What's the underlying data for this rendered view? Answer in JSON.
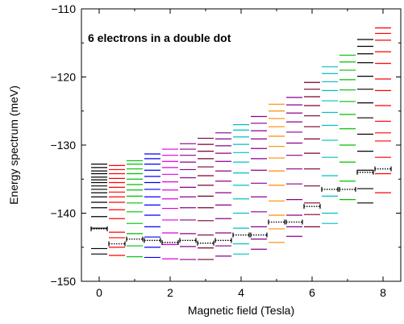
{
  "chart_data": {
    "type": "scatter",
    "title": "",
    "annotation": "6 electrons in a double dot",
    "xlabel": "Magnetic field (Tesla)",
    "ylabel": "Energy spectrum (meV)",
    "xlim": [
      -0.5,
      8.5
    ],
    "ylim": [
      -150,
      -110
    ],
    "xticks": [
      0,
      2,
      4,
      6,
      8
    ],
    "yticks": [
      -150,
      -140,
      -130,
      -120,
      -110
    ],
    "grid": false,
    "marker": "short horizontal line per energy level",
    "colors": [
      "#000000",
      "#ff0000",
      "#00c000",
      "#0000ff",
      "#e000e0",
      "#00c0c0",
      "#ff8c00",
      "#8b008b",
      "#7a0030"
    ],
    "ground_state": {
      "style": "dotted black segment with end caps",
      "x": [
        0,
        0.5,
        1,
        1.5,
        2,
        2.5,
        3,
        3.5,
        4,
        4.5,
        5,
        5.5,
        6,
        6.5,
        7,
        7.5,
        8
      ],
      "y": [
        -142.3,
        -144.5,
        -143.8,
        -144.0,
        -144.3,
        -144.0,
        -144.4,
        -144.0,
        -143.2,
        -143.2,
        -141.3,
        -141.3,
        -139.0,
        -136.5,
        -136.5,
        -134.0,
        -133.5
      ]
    },
    "series": [
      {
        "x": 0,
        "color": "#000000",
        "levels": [
          -132.8,
          -133.3,
          -133.8,
          -134.2,
          -134.7,
          -135.1,
          -135.5,
          -136.0,
          -136.5,
          -137.0,
          -137.6,
          -138.4,
          -139.2,
          -140.5,
          -142.2,
          -145.2,
          -146.0
        ]
      },
      {
        "x": 0.5,
        "color": "#ff0000",
        "levels": [
          -133.0,
          -133.6,
          -134.2,
          -134.9,
          -135.5,
          -136.2,
          -136.9,
          -137.6,
          -138.4,
          -139.5,
          -140.8,
          -142.8,
          -143.6,
          -145.0,
          -146.2
        ]
      },
      {
        "x": 1,
        "color": "#00c000",
        "levels": [
          -132.3,
          -132.8,
          -133.5,
          -134.2,
          -135.0,
          -135.8,
          -136.6,
          -137.5,
          -138.5,
          -139.8,
          -141.5,
          -143.0,
          -144.8,
          -146.4
        ]
      },
      {
        "x": 1.5,
        "color": "#0000ff",
        "levels": [
          -131.3,
          -132.0,
          -132.8,
          -133.7,
          -134.6,
          -135.5,
          -136.5,
          -137.6,
          -138.8,
          -140.3,
          -142.0,
          -143.5,
          -145.0,
          -146.5
        ]
      },
      {
        "x": 2,
        "color": "#e000e0",
        "levels": [
          -130.6,
          -131.5,
          -132.4,
          -133.3,
          -134.3,
          -135.4,
          -136.6,
          -137.9,
          -139.3,
          -141.0,
          -142.9,
          -144.6,
          -146.7
        ]
      },
      {
        "x": 2.5,
        "color": "#8b008b",
        "levels": [
          -129.8,
          -130.6,
          -131.5,
          -132.5,
          -133.6,
          -134.8,
          -136.2,
          -137.6,
          -139.2,
          -141.0,
          -143.0,
          -144.9,
          -146.8
        ]
      },
      {
        "x": 3,
        "color": "#7a0030",
        "levels": [
          -129.0,
          -129.9,
          -130.9,
          -132.0,
          -133.2,
          -134.5,
          -135.9,
          -137.5,
          -139.2,
          -141.1,
          -143.2,
          -145.1,
          -146.8
        ]
      },
      {
        "x": 3.5,
        "color": "#8b008b",
        "levels": [
          -128.2,
          -129.1,
          -130.1,
          -131.2,
          -132.4,
          -133.8,
          -135.3,
          -137.0,
          -138.8,
          -140.8,
          -142.9,
          -144.8,
          -146.3
        ]
      },
      {
        "x": 4,
        "color": "#00c0c0",
        "levels": [
          -127.0,
          -127.8,
          -128.8,
          -129.9,
          -131.1,
          -132.5,
          -134.1,
          -135.9,
          -137.9,
          -140.0,
          -142.2,
          -144.5,
          -146.0
        ]
      },
      {
        "x": 4.5,
        "color": "#8b008b",
        "levels": [
          -125.8,
          -126.8,
          -127.9,
          -129.1,
          -130.5,
          -132.0,
          -133.7,
          -135.6,
          -137.6,
          -139.8,
          -142.0,
          -143.8,
          -145.3
        ]
      },
      {
        "x": 5,
        "color": "#ff8c00",
        "levels": [
          -124.0,
          -125.0,
          -126.1,
          -127.3,
          -128.7,
          -130.2,
          -131.9,
          -133.8,
          -135.9,
          -138.2,
          -140.3,
          -142.3,
          -144.3
        ]
      },
      {
        "x": 5.5,
        "color": "#8b008b",
        "levels": [
          -123.0,
          -124.1,
          -125.3,
          -126.6,
          -128.1,
          -129.7,
          -131.5,
          -133.5,
          -135.7,
          -138.0,
          -140.3,
          -142.0,
          -143.4
        ]
      },
      {
        "x": 6,
        "color": "#7a0030",
        "levels": [
          -120.8,
          -121.8,
          -122.9,
          -124.2,
          -125.7,
          -127.3,
          -129.1,
          -131.2,
          -133.5,
          -136.0,
          -138.5,
          -140.2,
          -142.0
        ]
      },
      {
        "x": 6.5,
        "color": "#00c0c0",
        "levels": [
          -118.5,
          -119.5,
          -120.7,
          -122.0,
          -123.5,
          -125.2,
          -127.1,
          -129.3,
          -131.8,
          -134.5,
          -137.5,
          -140.0,
          -141.5
        ]
      },
      {
        "x": 7,
        "color": "#00c000",
        "levels": [
          -116.8,
          -117.8,
          -119.0,
          -120.4,
          -121.9,
          -123.6,
          -125.5,
          -127.6,
          -130.0,
          -132.5,
          -135.3,
          -138.0
        ]
      },
      {
        "x": 7.5,
        "color": "#000000",
        "levels": [
          -114.5,
          -115.5,
          -116.6,
          -117.9,
          -119.9,
          -121.8,
          -123.8,
          -126.0,
          -128.4,
          -130.9,
          -133.7,
          -136.4,
          -138.5
        ]
      },
      {
        "x": 8,
        "color": "#ff0000",
        "levels": [
          -112.8,
          -113.6,
          -114.6,
          -116.3,
          -118.0,
          -120.3,
          -122.0,
          -124.2,
          -126.5,
          -128.2,
          -129.4,
          -131.8,
          -134.2,
          -137.0
        ]
      }
    ]
  }
}
